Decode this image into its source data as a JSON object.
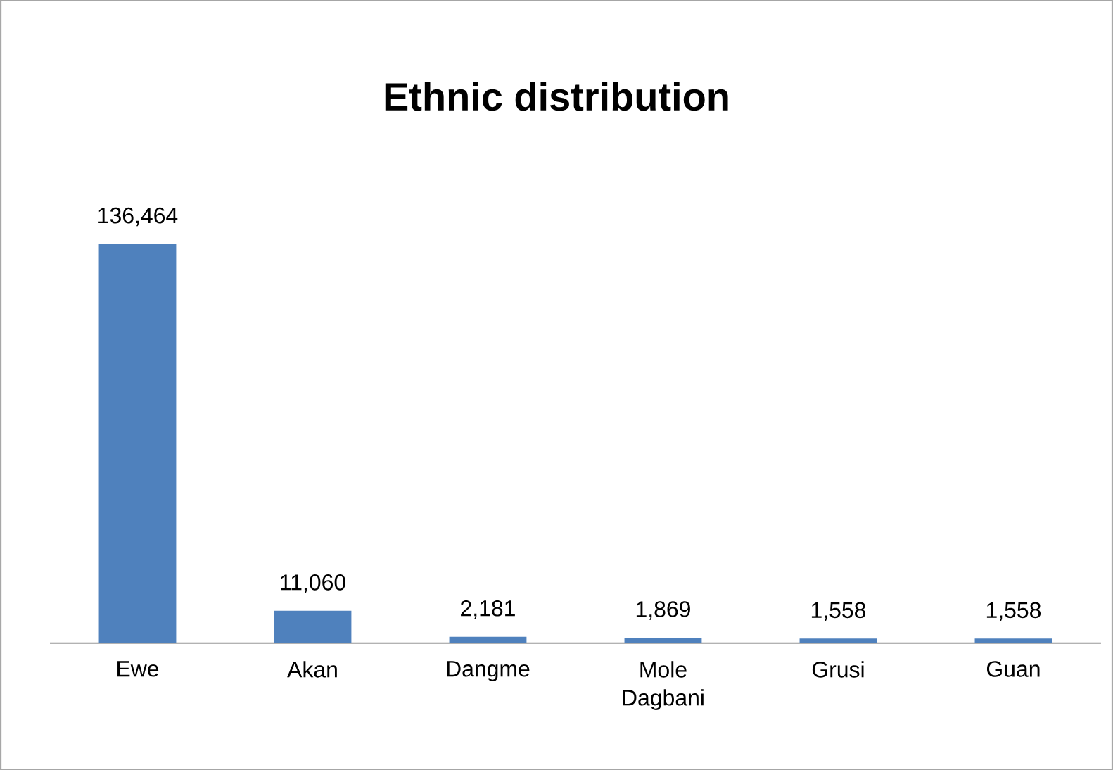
{
  "chart_data": {
    "type": "bar",
    "title": "Ethnic distribution",
    "categories": [
      "Ewe",
      "Akan",
      "Dangme",
      "Mole Dagbani",
      "Grusi",
      "Guan"
    ],
    "values": [
      136464,
      11060,
      2181,
      1869,
      1558,
      1558
    ],
    "value_labels": [
      "136,464",
      "11,060",
      "2,181",
      "1,869",
      "1,558",
      "1,558"
    ],
    "color": "#4f81bd"
  }
}
